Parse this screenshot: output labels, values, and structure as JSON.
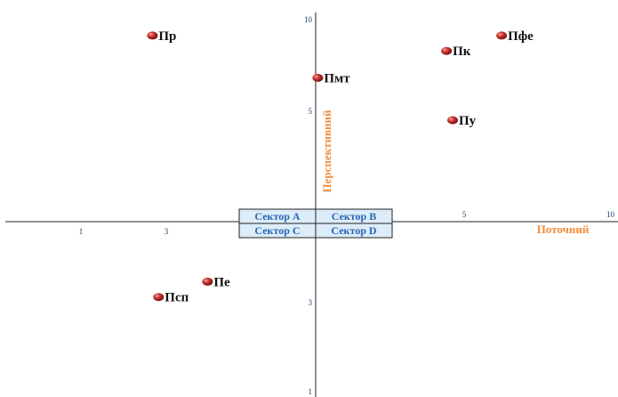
{
  "chart_data": {
    "type": "scatter",
    "xlabel": "Поточний",
    "ylabel": "Перспективний",
    "x_ticks_left": [
      "1",
      "3"
    ],
    "x_ticks_right": [
      "5",
      "10"
    ],
    "y_ticks_top": [
      "10",
      "5"
    ],
    "y_ticks_bottom": [
      "3",
      "1"
    ],
    "sectors": [
      "Сектор A",
      "Сектор B",
      "Сектор C",
      "Сектор D"
    ],
    "points": [
      {
        "label": "Пр",
        "x": 2.4,
        "y": 9.4
      },
      {
        "label": "Пфе",
        "x": 8.1,
        "y": 9.4
      },
      {
        "label": "Пк",
        "x": 7.2,
        "y": 9.0
      },
      {
        "label": "Пмт",
        "x": 5.1,
        "y": 8.3
      },
      {
        "label": "Пу",
        "x": 7.3,
        "y": 7.2
      },
      {
        "label": "Псп",
        "x": 2.5,
        "y": 2.6
      },
      {
        "label": "Пе",
        "x": 3.3,
        "y": 3.0
      }
    ],
    "colors": {
      "axis": "#222222",
      "tick": "#1f3a7a",
      "axis_title": "#f28c3c",
      "sector_fill": "#dcecf8",
      "sector_border": "#222222",
      "sector_text": "#2a66b6",
      "point": "#b3242b"
    }
  }
}
